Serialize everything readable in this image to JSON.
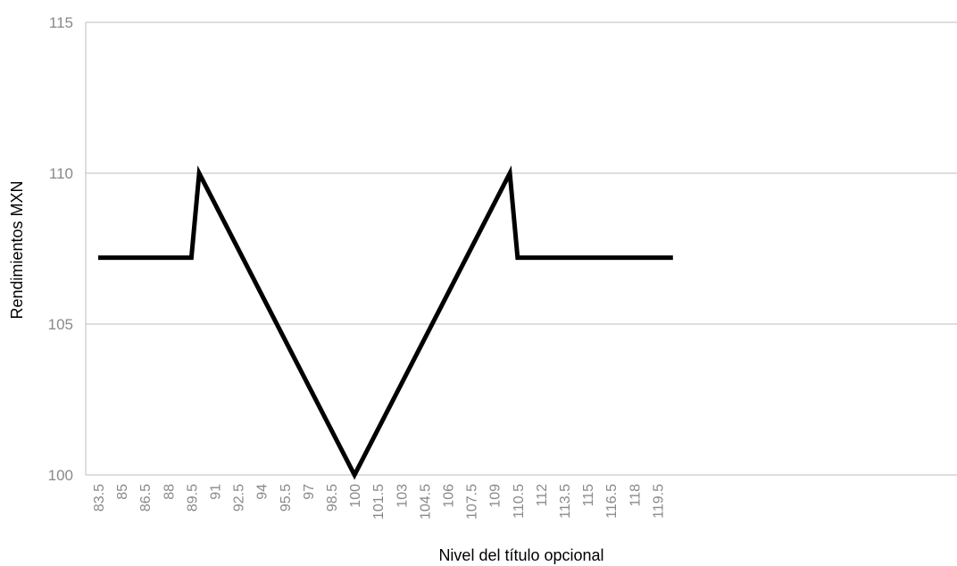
{
  "chart_data": {
    "type": "line",
    "title": "",
    "xlabel": "Nivel del título opcional",
    "ylabel": "Rendimientos MXN",
    "ylim": [
      100,
      115
    ],
    "yticks": [
      "100",
      "105",
      "110",
      "115"
    ],
    "xlim": [
      83.5,
      120.5
    ],
    "xticks": [
      "83.5",
      "85",
      "86.5",
      "88",
      "89.5",
      "91",
      "92.5",
      "94",
      "95.5",
      "97",
      "98.5",
      "100",
      "101.5",
      "103",
      "104.5",
      "106",
      "107.5",
      "109",
      "110.5",
      "112",
      "113.5",
      "115",
      "116.5",
      "118",
      "119.5"
    ],
    "grid": true,
    "legend": "none",
    "series": [
      {
        "color": "#000000",
        "x": [
          83.5,
          89.5,
          90,
          100,
          110,
          110.5,
          120.5
        ],
        "y": [
          107.2,
          107.2,
          110,
          100,
          110,
          107.2,
          107.2
        ]
      }
    ]
  }
}
